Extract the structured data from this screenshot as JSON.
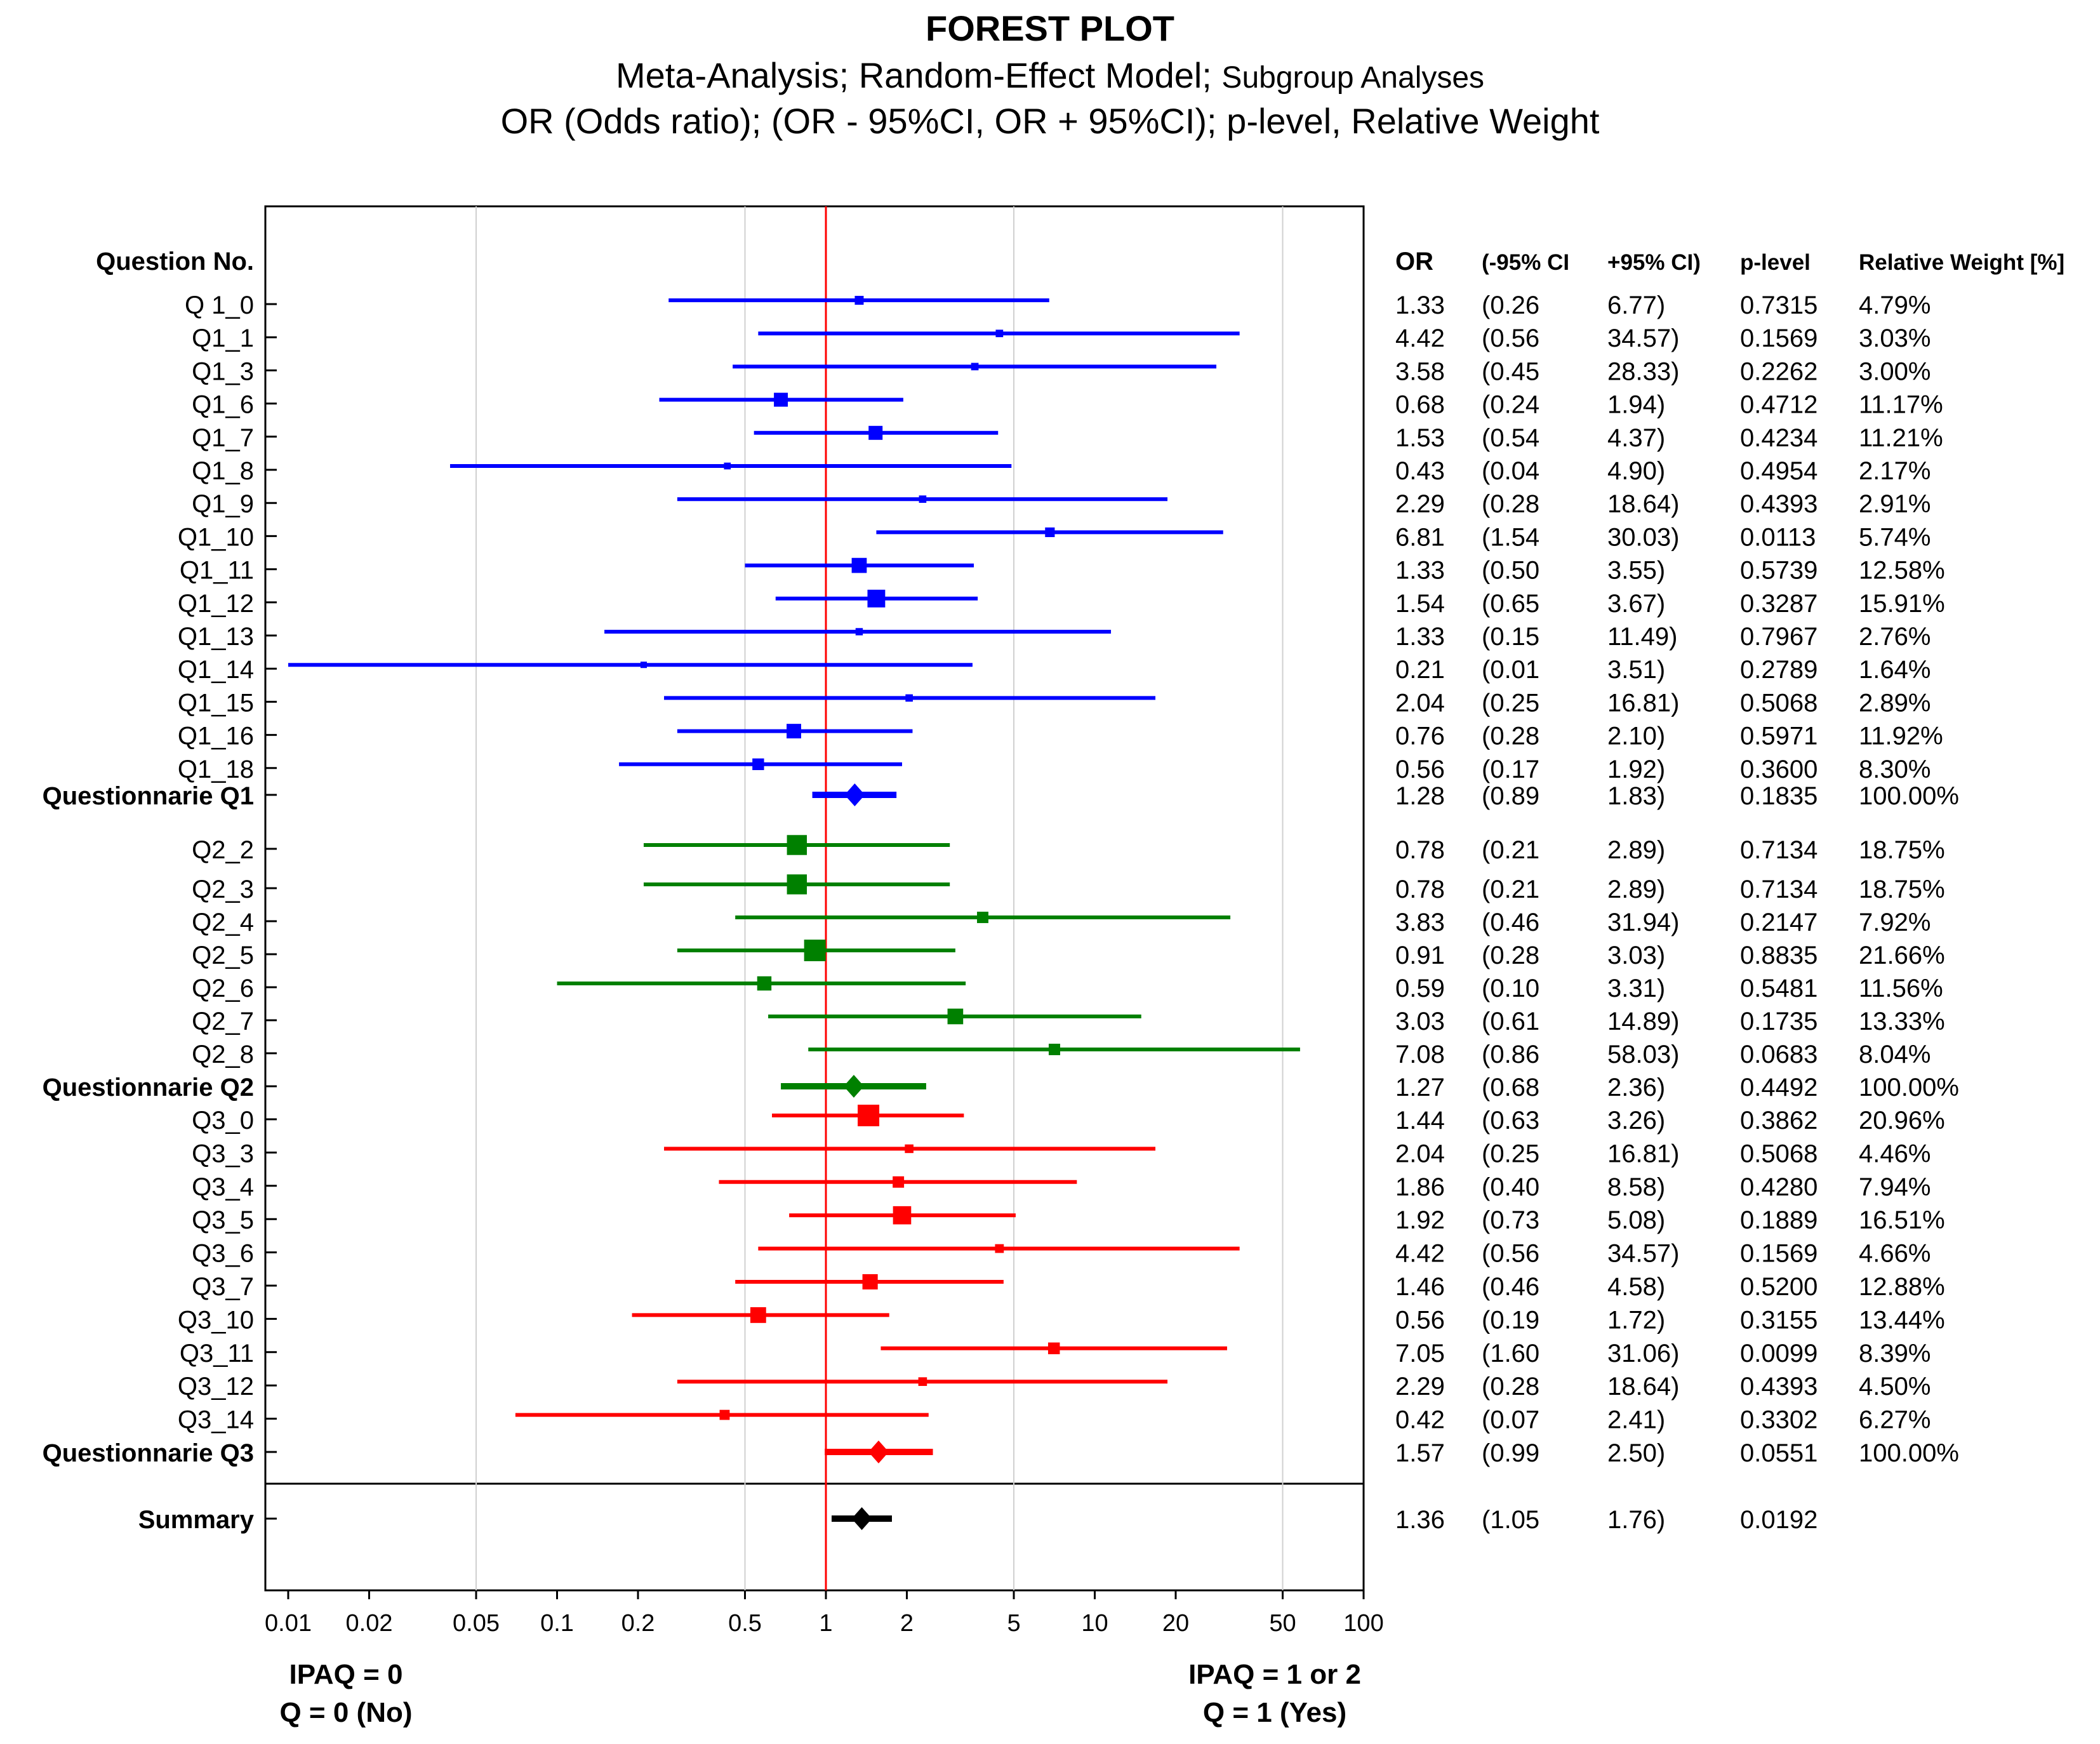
{
  "title": {
    "main": "FOREST PLOT",
    "line2_part1": "Meta-Analysis; Random-Effect Model; ",
    "line2_part2": "Subgroup Analyses",
    "line3": "OR (Odds ratio);  (OR - 95%CI, OR + 95%CI); p-level, Relative Weight"
  },
  "columns": {
    "label": "Question No.",
    "or": "OR",
    "lo": "(-95% CI",
    "hi": "+95% CI)",
    "p": "p-level",
    "w": "Relative Weight [%]"
  },
  "axis": {
    "ticks": [
      0.01,
      0.02,
      0.05,
      0.1,
      0.2,
      0.5,
      1,
      2,
      5,
      10,
      20,
      50,
      100
    ],
    "tick_labels": [
      "0.01",
      "0.02",
      "0.05",
      "0.1",
      "0.2",
      "0.5",
      "1",
      "2",
      "5",
      "10",
      "20",
      "50",
      "100"
    ],
    "gridlines": [
      0.05,
      0.5,
      5,
      50
    ],
    "reference": 1,
    "scale": "log",
    "xlim": [
      0.01,
      100
    ]
  },
  "footer": {
    "left_line1": "IPAQ = 0",
    "left_line2": "Q = 0 (No)",
    "right_line1": "IPAQ = 1 or 2",
    "right_line2": "Q = 1 (Yes)"
  },
  "colors": {
    "q1": "#0000ff",
    "q2": "#008000",
    "q3": "#ff0000",
    "summary": "#000000",
    "reference": "#ff0000",
    "grid": "#d0d0d0"
  },
  "chart_data": {
    "type": "forest",
    "title": "FOREST PLOT",
    "rows": [
      {
        "label": "Q 1_0",
        "group": "q1",
        "kind": "study",
        "or": 1.33,
        "lo": 0.26,
        "hi": 6.77,
        "p": 0.7315,
        "w": 4.79,
        "or_txt": "1.33",
        "lo_txt": "(0.26",
        "hi_txt": "6.77)",
        "p_txt": "0.7315",
        "w_txt": "4.79%"
      },
      {
        "label": "Q1_1",
        "group": "q1",
        "kind": "study",
        "or": 4.42,
        "lo": 0.56,
        "hi": 34.57,
        "p": 0.1569,
        "w": 3.03,
        "or_txt": "4.42",
        "lo_txt": "(0.56",
        "hi_txt": "34.57)",
        "p_txt": "0.1569",
        "w_txt": "3.03%"
      },
      {
        "label": "Q1_3",
        "group": "q1",
        "kind": "study",
        "or": 3.58,
        "lo": 0.45,
        "hi": 28.33,
        "p": 0.2262,
        "w": 3.0,
        "or_txt": "3.58",
        "lo_txt": "(0.45",
        "hi_txt": "28.33)",
        "p_txt": "0.2262",
        "w_txt": "3.00%"
      },
      {
        "label": "Q1_6",
        "group": "q1",
        "kind": "study",
        "or": 0.68,
        "lo": 0.24,
        "hi": 1.94,
        "p": 0.4712,
        "w": 11.17,
        "or_txt": "0.68",
        "lo_txt": "(0.24",
        "hi_txt": "1.94)",
        "p_txt": "0.4712",
        "w_txt": "11.17%"
      },
      {
        "label": "Q1_7",
        "group": "q1",
        "kind": "study",
        "or": 1.53,
        "lo": 0.54,
        "hi": 4.37,
        "p": 0.4234,
        "w": 11.21,
        "or_txt": "1.53",
        "lo_txt": "(0.54",
        "hi_txt": "4.37)",
        "p_txt": "0.4234",
        "w_txt": "11.21%"
      },
      {
        "label": "Q1_8",
        "group": "q1",
        "kind": "study",
        "or": 0.43,
        "lo": 0.04,
        "hi": 4.9,
        "p": 0.4954,
        "w": 2.17,
        "or_txt": "0.43",
        "lo_txt": "(0.04",
        "hi_txt": "4.90)",
        "p_txt": "0.4954",
        "w_txt": "2.17%"
      },
      {
        "label": "Q1_9",
        "group": "q1",
        "kind": "study",
        "or": 2.29,
        "lo": 0.28,
        "hi": 18.64,
        "p": 0.4393,
        "w": 2.91,
        "or_txt": "2.29",
        "lo_txt": "(0.28",
        "hi_txt": "18.64)",
        "p_txt": "0.4393",
        "w_txt": "2.91%"
      },
      {
        "label": "Q1_10",
        "group": "q1",
        "kind": "study",
        "or": 6.81,
        "lo": 1.54,
        "hi": 30.03,
        "p": 0.0113,
        "w": 5.74,
        "or_txt": "6.81",
        "lo_txt": "(1.54",
        "hi_txt": "30.03)",
        "p_txt": "0.0113",
        "w_txt": "5.74%"
      },
      {
        "label": "Q1_11",
        "group": "q1",
        "kind": "study",
        "or": 1.33,
        "lo": 0.5,
        "hi": 3.55,
        "p": 0.5739,
        "w": 12.58,
        "or_txt": "1.33",
        "lo_txt": "(0.50",
        "hi_txt": "3.55)",
        "p_txt": "0.5739",
        "w_txt": "12.58%"
      },
      {
        "label": "Q1_12",
        "group": "q1",
        "kind": "study",
        "or": 1.54,
        "lo": 0.65,
        "hi": 3.67,
        "p": 0.3287,
        "w": 15.91,
        "or_txt": "1.54",
        "lo_txt": "(0.65",
        "hi_txt": "3.67)",
        "p_txt": "0.3287",
        "w_txt": "15.91%"
      },
      {
        "label": "Q1_13",
        "group": "q1",
        "kind": "study",
        "or": 1.33,
        "lo": 0.15,
        "hi": 11.49,
        "p": 0.7967,
        "w": 2.76,
        "or_txt": "1.33",
        "lo_txt": "(0.15",
        "hi_txt": "11.49)",
        "p_txt": "0.7967",
        "w_txt": "2.76%"
      },
      {
        "label": "Q1_14",
        "group": "q1",
        "kind": "study",
        "or": 0.21,
        "lo": 0.01,
        "hi": 3.51,
        "p": 0.2789,
        "w": 1.64,
        "or_txt": "0.21",
        "lo_txt": "(0.01",
        "hi_txt": "3.51)",
        "p_txt": "0.2789",
        "w_txt": "1.64%"
      },
      {
        "label": "Q1_15",
        "group": "q1",
        "kind": "study",
        "or": 2.04,
        "lo": 0.25,
        "hi": 16.81,
        "p": 0.5068,
        "w": 2.89,
        "or_txt": "2.04",
        "lo_txt": "(0.25",
        "hi_txt": "16.81)",
        "p_txt": "0.5068",
        "w_txt": "2.89%"
      },
      {
        "label": "Q1_16",
        "group": "q1",
        "kind": "study",
        "or": 0.76,
        "lo": 0.28,
        "hi": 2.1,
        "p": 0.5971,
        "w": 11.92,
        "or_txt": "0.76",
        "lo_txt": "(0.28",
        "hi_txt": "2.10)",
        "p_txt": "0.5971",
        "w_txt": "11.92%"
      },
      {
        "label": "Q1_18",
        "group": "q1",
        "kind": "study",
        "or": 0.56,
        "lo": 0.17,
        "hi": 1.92,
        "p": 0.36,
        "w": 8.3,
        "or_txt": "0.56",
        "lo_txt": "(0.17",
        "hi_txt": "1.92)",
        "p_txt": "0.3600",
        "w_txt": "8.30%"
      },
      {
        "label": "Questionnarie Q1",
        "group": "q1",
        "kind": "pooled",
        "or": 1.28,
        "lo": 0.89,
        "hi": 1.83,
        "p": 0.1835,
        "w": 100.0,
        "or_txt": "1.28",
        "lo_txt": "(0.89",
        "hi_txt": "1.83)",
        "p_txt": "0.1835",
        "w_txt": "100.00%"
      },
      {
        "label": "Q2_2",
        "group": "q2",
        "kind": "study",
        "or": 0.78,
        "lo": 0.21,
        "hi": 2.89,
        "p": 0.7134,
        "w": 18.75,
        "or_txt": "0.78",
        "lo_txt": "(0.21",
        "hi_txt": "2.89)",
        "p_txt": "0.7134",
        "w_txt": "18.75%"
      },
      {
        "label": "Q2_3",
        "group": "q2",
        "kind": "study",
        "or": 0.78,
        "lo": 0.21,
        "hi": 2.89,
        "p": 0.7134,
        "w": 18.75,
        "or_txt": "0.78",
        "lo_txt": "(0.21",
        "hi_txt": "2.89)",
        "p_txt": "0.7134",
        "w_txt": "18.75%"
      },
      {
        "label": "Q2_4",
        "group": "q2",
        "kind": "study",
        "or": 3.83,
        "lo": 0.46,
        "hi": 31.94,
        "p": 0.2147,
        "w": 7.92,
        "or_txt": "3.83",
        "lo_txt": "(0.46",
        "hi_txt": "31.94)",
        "p_txt": "0.2147",
        "w_txt": "7.92%"
      },
      {
        "label": "Q2_5",
        "group": "q2",
        "kind": "study",
        "or": 0.91,
        "lo": 0.28,
        "hi": 3.03,
        "p": 0.8835,
        "w": 21.66,
        "or_txt": "0.91",
        "lo_txt": "(0.28",
        "hi_txt": "3.03)",
        "p_txt": "0.8835",
        "w_txt": "21.66%"
      },
      {
        "label": "Q2_6",
        "group": "q2",
        "kind": "study",
        "or": 0.59,
        "lo": 0.1,
        "hi": 3.31,
        "p": 0.5481,
        "w": 11.56,
        "or_txt": "0.59",
        "lo_txt": "(0.10",
        "hi_txt": "3.31)",
        "p_txt": "0.5481",
        "w_txt": "11.56%"
      },
      {
        "label": "Q2_7",
        "group": "q2",
        "kind": "study",
        "or": 3.03,
        "lo": 0.61,
        "hi": 14.89,
        "p": 0.1735,
        "w": 13.33,
        "or_txt": "3.03",
        "lo_txt": "(0.61",
        "hi_txt": "14.89)",
        "p_txt": "0.1735",
        "w_txt": "13.33%"
      },
      {
        "label": "Q2_8",
        "group": "q2",
        "kind": "study",
        "or": 7.08,
        "lo": 0.86,
        "hi": 58.03,
        "p": 0.0683,
        "w": 8.04,
        "or_txt": "7.08",
        "lo_txt": "(0.86",
        "hi_txt": "58.03)",
        "p_txt": "0.0683",
        "w_txt": "8.04%"
      },
      {
        "label": "Questionnarie Q2",
        "group": "q2",
        "kind": "pooled",
        "or": 1.27,
        "lo": 0.68,
        "hi": 2.36,
        "p": 0.4492,
        "w": 100.0,
        "or_txt": "1.27",
        "lo_txt": "(0.68",
        "hi_txt": "2.36)",
        "p_txt": "0.4492",
        "w_txt": "100.00%"
      },
      {
        "label": "Q3_0",
        "group": "q3",
        "kind": "study",
        "or": 1.44,
        "lo": 0.63,
        "hi": 3.26,
        "p": 0.3862,
        "w": 20.96,
        "or_txt": "1.44",
        "lo_txt": "(0.63",
        "hi_txt": "3.26)",
        "p_txt": "0.3862",
        "w_txt": "20.96%"
      },
      {
        "label": "Q3_3",
        "group": "q3",
        "kind": "study",
        "or": 2.04,
        "lo": 0.25,
        "hi": 16.81,
        "p": 0.5068,
        "w": 4.46,
        "or_txt": "2.04",
        "lo_txt": "(0.25",
        "hi_txt": "16.81)",
        "p_txt": "0.5068",
        "w_txt": "4.46%"
      },
      {
        "label": "Q3_4",
        "group": "q3",
        "kind": "study",
        "or": 1.86,
        "lo": 0.4,
        "hi": 8.58,
        "p": 0.428,
        "w": 7.94,
        "or_txt": "1.86",
        "lo_txt": "(0.40",
        "hi_txt": "8.58)",
        "p_txt": "0.4280",
        "w_txt": "7.94%"
      },
      {
        "label": "Q3_5",
        "group": "q3",
        "kind": "study",
        "or": 1.92,
        "lo": 0.73,
        "hi": 5.08,
        "p": 0.1889,
        "w": 16.51,
        "or_txt": "1.92",
        "lo_txt": "(0.73",
        "hi_txt": "5.08)",
        "p_txt": "0.1889",
        "w_txt": "16.51%"
      },
      {
        "label": "Q3_6",
        "group": "q3",
        "kind": "study",
        "or": 4.42,
        "lo": 0.56,
        "hi": 34.57,
        "p": 0.1569,
        "w": 4.66,
        "or_txt": "4.42",
        "lo_txt": "(0.56",
        "hi_txt": "34.57)",
        "p_txt": "0.1569",
        "w_txt": "4.66%"
      },
      {
        "label": "Q3_7",
        "group": "q3",
        "kind": "study",
        "or": 1.46,
        "lo": 0.46,
        "hi": 4.58,
        "p": 0.52,
        "w": 12.88,
        "or_txt": "1.46",
        "lo_txt": "(0.46",
        "hi_txt": "4.58)",
        "p_txt": "0.5200",
        "w_txt": "12.88%"
      },
      {
        "label": "Q3_10",
        "group": "q3",
        "kind": "study",
        "or": 0.56,
        "lo": 0.19,
        "hi": 1.72,
        "p": 0.3155,
        "w": 13.44,
        "or_txt": "0.56",
        "lo_txt": "(0.19",
        "hi_txt": "1.72)",
        "p_txt": "0.3155",
        "w_txt": "13.44%"
      },
      {
        "label": "Q3_11",
        "group": "q3",
        "kind": "study",
        "or": 7.05,
        "lo": 1.6,
        "hi": 31.06,
        "p": 0.0099,
        "w": 8.39,
        "or_txt": "7.05",
        "lo_txt": "(1.60",
        "hi_txt": "31.06)",
        "p_txt": "0.0099",
        "w_txt": "8.39%"
      },
      {
        "label": "Q3_12",
        "group": "q3",
        "kind": "study",
        "or": 2.29,
        "lo": 0.28,
        "hi": 18.64,
        "p": 0.4393,
        "w": 4.5,
        "or_txt": "2.29",
        "lo_txt": "(0.28",
        "hi_txt": "18.64)",
        "p_txt": "0.4393",
        "w_txt": "4.50%"
      },
      {
        "label": "Q3_14",
        "group": "q3",
        "kind": "study",
        "or": 0.42,
        "lo": 0.07,
        "hi": 2.41,
        "p": 0.3302,
        "w": 6.27,
        "or_txt": "0.42",
        "lo_txt": "(0.07",
        "hi_txt": "2.41)",
        "p_txt": "0.3302",
        "w_txt": "6.27%"
      },
      {
        "label": "Questionnarie Q3",
        "group": "q3",
        "kind": "pooled",
        "or": 1.57,
        "lo": 0.99,
        "hi": 2.5,
        "p": 0.0551,
        "w": 100.0,
        "or_txt": "1.57",
        "lo_txt": "(0.99",
        "hi_txt": "2.50)",
        "p_txt": "0.0551",
        "w_txt": "100.00%"
      },
      {
        "label": "Summary",
        "group": "summary",
        "kind": "summary",
        "or": 1.36,
        "lo": 1.05,
        "hi": 1.76,
        "p": 0.0192,
        "or_txt": "1.36",
        "lo_txt": "(1.05",
        "hi_txt": "1.76)",
        "p_txt": "0.0192",
        "w_txt": ""
      }
    ]
  }
}
